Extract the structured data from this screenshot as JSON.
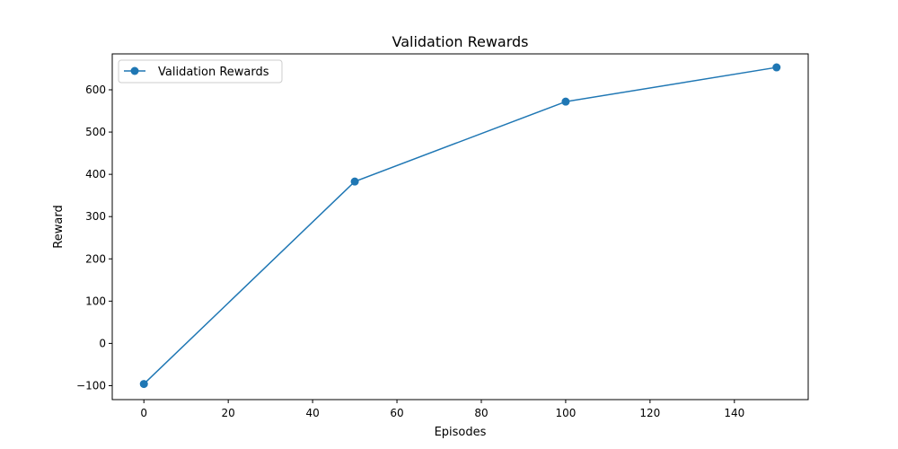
{
  "chart_data": {
    "type": "line",
    "title": "Validation Rewards",
    "xlabel": "Episodes",
    "ylabel": "Reward",
    "xlim": [
      -7.5,
      157.5
    ],
    "ylim": [
      -133,
      685
    ],
    "xticks": [
      0,
      20,
      40,
      60,
      80,
      100,
      120,
      140
    ],
    "yticks": [
      -100,
      0,
      100,
      200,
      300,
      400,
      500,
      600
    ],
    "grid": false,
    "legend": "top-left",
    "series": [
      {
        "name": "Validation Rewards",
        "color": "#1f77b4",
        "marker": "circle",
        "x": [
          0,
          50,
          100,
          150
        ],
        "y": [
          -96,
          383,
          572,
          653
        ]
      }
    ]
  }
}
